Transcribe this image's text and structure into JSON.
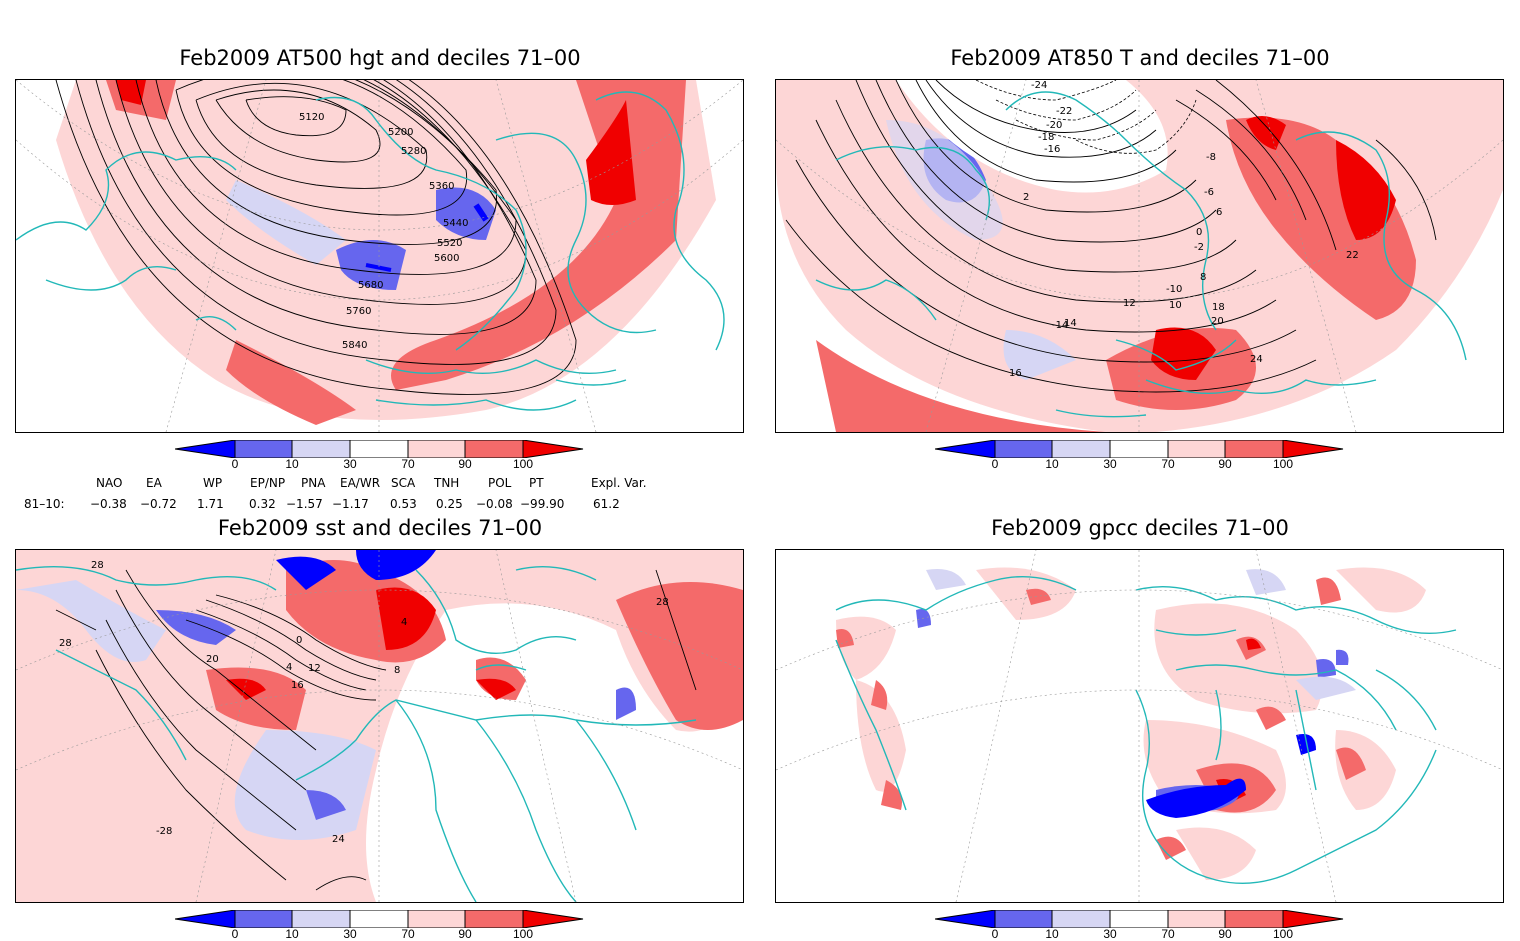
{
  "panels": [
    {
      "title": "Feb2009 AT500 hgt and deciles 71–00",
      "labels": [
        "5120",
        "5200",
        "5280",
        "5360",
        "5440",
        "5520",
        "5600",
        "5680",
        "5760",
        "5840"
      ]
    },
    {
      "title": "Feb2009 AT850 T and deciles 71–00",
      "labels": [
        "-24",
        "-22",
        "-20",
        "-18",
        "-16",
        "-14",
        "-10",
        "-8",
        "-6",
        "-2",
        "0",
        "2",
        "6",
        "8",
        "10",
        "12",
        "14",
        "16",
        "18",
        "20",
        "22",
        "24"
      ]
    },
    {
      "title": "Feb2009 sst and deciles 71–00",
      "labels": [
        "28",
        "20",
        "16",
        "12",
        "8",
        "4",
        "0",
        "24",
        "-28"
      ]
    },
    {
      "title": "Feb2009 gpcc deciles 71–00",
      "labels": []
    }
  ],
  "colorbar": {
    "ticks": [
      "0",
      "10",
      "30",
      "70",
      "90",
      "100"
    ],
    "colors": [
      "#0000ff",
      "#6666ee",
      "#d6d6f4",
      "#ffffff",
      "#fdd6d6",
      "#f46a6a",
      "#f00000"
    ]
  },
  "indices": {
    "row_label": "81–10:",
    "names": [
      "NAO",
      "EA",
      "WP",
      "EP/NP",
      "PNA",
      "EA/WR",
      "SCA",
      "TNH",
      "POL",
      "PT",
      "Expl. Var."
    ],
    "values": [
      "−0.38",
      "−0.72",
      "1.71",
      "0.32",
      "−1.57",
      "−1.17",
      "0.53",
      "0.25",
      "−0.08",
      "−99.90",
      "61.2"
    ]
  },
  "colors": {
    "coast": "#22b8b8",
    "contour": "#000000",
    "frame": "#000000"
  }
}
